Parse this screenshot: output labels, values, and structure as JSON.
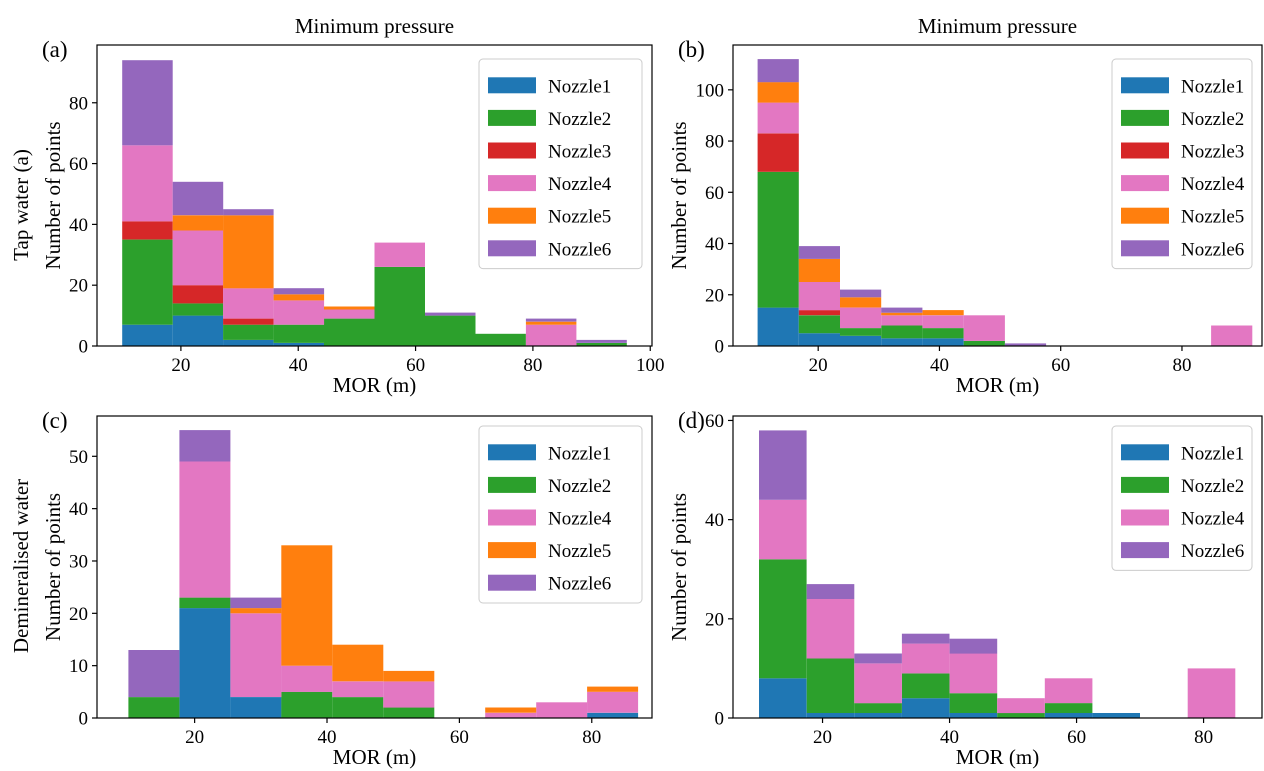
{
  "colors": {
    "Nozzle1": "#1f77b4",
    "Nozzle2": "#2ca02c",
    "Nozzle3": "#d62728",
    "Nozzle4": "#e377c2",
    "Nozzle5": "#ff7f0e",
    "Nozzle6": "#9467bd"
  },
  "row_labels": [
    "Tap water (a)",
    "Demineralised water"
  ],
  "chart_data": [
    {
      "id": "a",
      "panel_label": "(a)",
      "type": "bar",
      "stacked": true,
      "title": "Minimum pressure",
      "xlabel": "MOR (m)",
      "ylabel": "Number of points",
      "xlim": [
        5.7,
        100.3
      ],
      "ylim": [
        0,
        99
      ],
      "xticks": [
        20,
        40,
        60,
        80,
        100
      ],
      "yticks": [
        0,
        20,
        40,
        60,
        80
      ],
      "legend": "top-right",
      "bin_edges": [
        10.0,
        18.6,
        27.2,
        35.8,
        44.4,
        53.0,
        61.6,
        70.2,
        78.8,
        87.4,
        96.0
      ],
      "series": [
        {
          "name": "Nozzle1",
          "values": [
            7,
            10,
            2,
            1,
            0,
            0,
            0,
            0,
            0,
            0
          ]
        },
        {
          "name": "Nozzle2",
          "values": [
            28,
            4,
            5,
            6,
            9,
            26,
            10,
            4,
            0,
            1
          ]
        },
        {
          "name": "Nozzle3",
          "values": [
            6,
            6,
            2,
            0,
            0,
            0,
            0,
            0,
            0,
            0
          ]
        },
        {
          "name": "Nozzle4",
          "values": [
            25,
            18,
            10,
            8,
            3,
            8,
            0,
            0,
            7,
            0
          ]
        },
        {
          "name": "Nozzle5",
          "values": [
            0,
            5,
            24,
            2,
            1,
            0,
            0,
            0,
            1,
            0
          ]
        },
        {
          "name": "Nozzle6",
          "values": [
            28,
            11,
            2,
            2,
            0,
            0,
            1,
            0,
            1,
            1
          ]
        }
      ]
    },
    {
      "id": "b",
      "panel_label": "(b)",
      "type": "bar",
      "stacked": true,
      "title": "Minimum pressure",
      "xlabel": "MOR (m)",
      "ylabel": "Number of points",
      "xlim": [
        5.95,
        93.2
      ],
      "ylim": [
        0,
        117.5
      ],
      "xticks": [
        20,
        40,
        60,
        80
      ],
      "yticks": [
        0,
        20,
        40,
        60,
        80,
        100
      ],
      "legend": "top-right",
      "bin_edges": [
        10.0,
        16.8,
        23.6,
        30.4,
        37.2,
        44.0,
        50.8,
        57.6,
        64.4,
        71.2,
        78.0,
        84.8,
        91.6
      ],
      "series": [
        {
          "name": "Nozzle1",
          "values": [
            15,
            5,
            4,
            3,
            3,
            0,
            0,
            0,
            0,
            0,
            0,
            0
          ]
        },
        {
          "name": "Nozzle2",
          "values": [
            53,
            7,
            3,
            5,
            4,
            2,
            0,
            0,
            0,
            0,
            0,
            0
          ]
        },
        {
          "name": "Nozzle3",
          "values": [
            15,
            2,
            0,
            0,
            0,
            0,
            0,
            0,
            0,
            0,
            0,
            0
          ]
        },
        {
          "name": "Nozzle4",
          "values": [
            12,
            11,
            8,
            4,
            5,
            10,
            0,
            0,
            0,
            0,
            0,
            8
          ]
        },
        {
          "name": "Nozzle5",
          "values": [
            8,
            9,
            4,
            1,
            2,
            0,
            0,
            0,
            0,
            0,
            0,
            0
          ]
        },
        {
          "name": "Nozzle6",
          "values": [
            9,
            5,
            3,
            2,
            0,
            0,
            1,
            0,
            0,
            0,
            0,
            0
          ]
        }
      ]
    },
    {
      "id": "c",
      "panel_label": "(c)",
      "type": "bar",
      "stacked": true,
      "title": "",
      "xlabel": "MOR (m)",
      "ylabel": "Number of points",
      "xlim": [
        5.25,
        89.1
      ],
      "ylim": [
        0,
        57.7
      ],
      "xticks": [
        20,
        40,
        60,
        80
      ],
      "yticks": [
        0,
        10,
        20,
        30,
        40,
        50
      ],
      "legend": "top-right",
      "bin_edges": [
        10.0,
        17.7,
        25.4,
        33.1,
        40.8,
        48.5,
        56.2,
        63.9,
        71.6,
        79.3,
        87.0
      ],
      "series": [
        {
          "name": "Nozzle1",
          "values": [
            0,
            21,
            4,
            0,
            0,
            0,
            0,
            0,
            0,
            1
          ]
        },
        {
          "name": "Nozzle2",
          "values": [
            4,
            2,
            0,
            5,
            4,
            2,
            0,
            0,
            0,
            0
          ]
        },
        {
          "name": "Nozzle4",
          "values": [
            0,
            26,
            16,
            5,
            3,
            5,
            0,
            1,
            3,
            4
          ]
        },
        {
          "name": "Nozzle5",
          "values": [
            0,
            0,
            1,
            23,
            7,
            2,
            0,
            1,
            0,
            1
          ]
        },
        {
          "name": "Nozzle6",
          "values": [
            9,
            6,
            2,
            0,
            0,
            0,
            0,
            0,
            0,
            0
          ]
        }
      ]
    },
    {
      "id": "d",
      "panel_label": "(d)",
      "type": "bar",
      "stacked": true,
      "title": "",
      "xlabel": "MOR (m)",
      "ylabel": "Number of points",
      "xlim": [
        5.9,
        89.2
      ],
      "ylim": [
        0,
        60.9
      ],
      "xticks": [
        20,
        40,
        60,
        80
      ],
      "yticks": [
        0,
        20,
        40,
        60
      ],
      "legend": "top-right",
      "bin_edges": [
        10.0,
        17.5,
        25.0,
        32.5,
        40.0,
        47.5,
        55.0,
        62.5,
        70.0,
        77.5,
        85.0
      ],
      "series": [
        {
          "name": "Nozzle1",
          "values": [
            8,
            1,
            1,
            4,
            1,
            0,
            1,
            1,
            0,
            0
          ]
        },
        {
          "name": "Nozzle2",
          "values": [
            24,
            11,
            2,
            5,
            4,
            1,
            2,
            0,
            0,
            0
          ]
        },
        {
          "name": "Nozzle4",
          "values": [
            12,
            12,
            8,
            6,
            8,
            3,
            5,
            0,
            0,
            10
          ]
        },
        {
          "name": "Nozzle6",
          "values": [
            14,
            3,
            2,
            2,
            3,
            0,
            0,
            0,
            0,
            0
          ]
        }
      ]
    }
  ]
}
